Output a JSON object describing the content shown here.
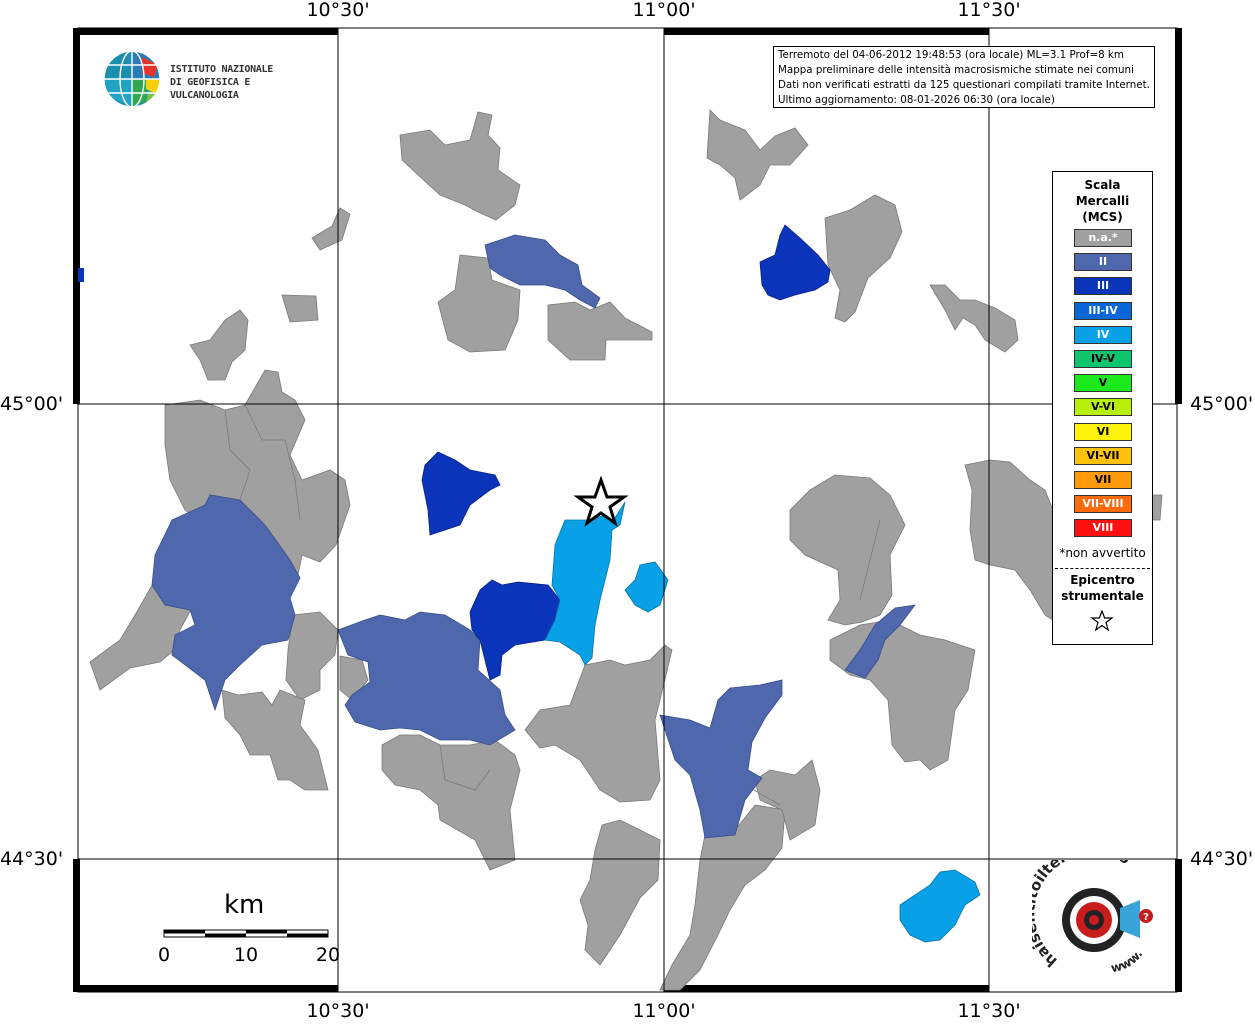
{
  "coordinates": {
    "lon_labels": [
      "10°30'",
      "11°00'",
      "11°30'"
    ],
    "lat_labels": [
      "45°00'",
      "44°30'"
    ]
  },
  "logo": {
    "line1": "ISTITUTO NAZIONALE",
    "line2": "DI GEOFISICA E VULCANOLOGIA"
  },
  "info": {
    "line1": "Terremoto del 04-06-2012 19:48:53 (ora locale) ML=3.1 Prof=8 km",
    "line2": "Mappa preliminare delle intensità macrosismiche stimate nei comuni",
    "line3": "Dati non verificati estratti da 125 questionari compilati tramite Internet.",
    "line4": "Ultimo aggiornamento: 08-01-2026 06:30 (ora locale)"
  },
  "legend": {
    "title1": "Scala",
    "title2": "Mercalli",
    "title3": "(MCS)",
    "items": [
      {
        "label": "n.a.*",
        "color": "#a0a0a0"
      },
      {
        "label": "II",
        "color": "#4e67ad"
      },
      {
        "label": "III",
        "color": "#0a34b9"
      },
      {
        "label": "III-IV",
        "color": "#0866d6"
      },
      {
        "label": "IV",
        "color": "#08a0e6"
      },
      {
        "label": "IV-V",
        "color": "#0ec56e"
      },
      {
        "label": "V",
        "color": "#1dea1d"
      },
      {
        "label": "V-VI",
        "color": "#b8f00c"
      },
      {
        "label": "VI",
        "color": "#fff20c"
      },
      {
        "label": "VI-VII",
        "color": "#ffc20c"
      },
      {
        "label": "VII",
        "color": "#ff9a0c"
      },
      {
        "label": "VII-VIII",
        "color": "#ff6a0c"
      },
      {
        "label": "VIII",
        "color": "#ff1010"
      }
    ],
    "note": "*non avvertito",
    "epicenter1": "Epicentro",
    "epicenter2": "strumentale"
  },
  "scale": {
    "unit": "km",
    "ticks": [
      "0",
      "10",
      "20"
    ]
  },
  "watermark": {
    "site": "haisentitoilterremoto.it",
    "url_text": "www."
  },
  "colors": {
    "na": "#a0a0a0",
    "ii": "#4e67ad",
    "iii": "#0a34b9",
    "iv": "#08a0e6"
  }
}
